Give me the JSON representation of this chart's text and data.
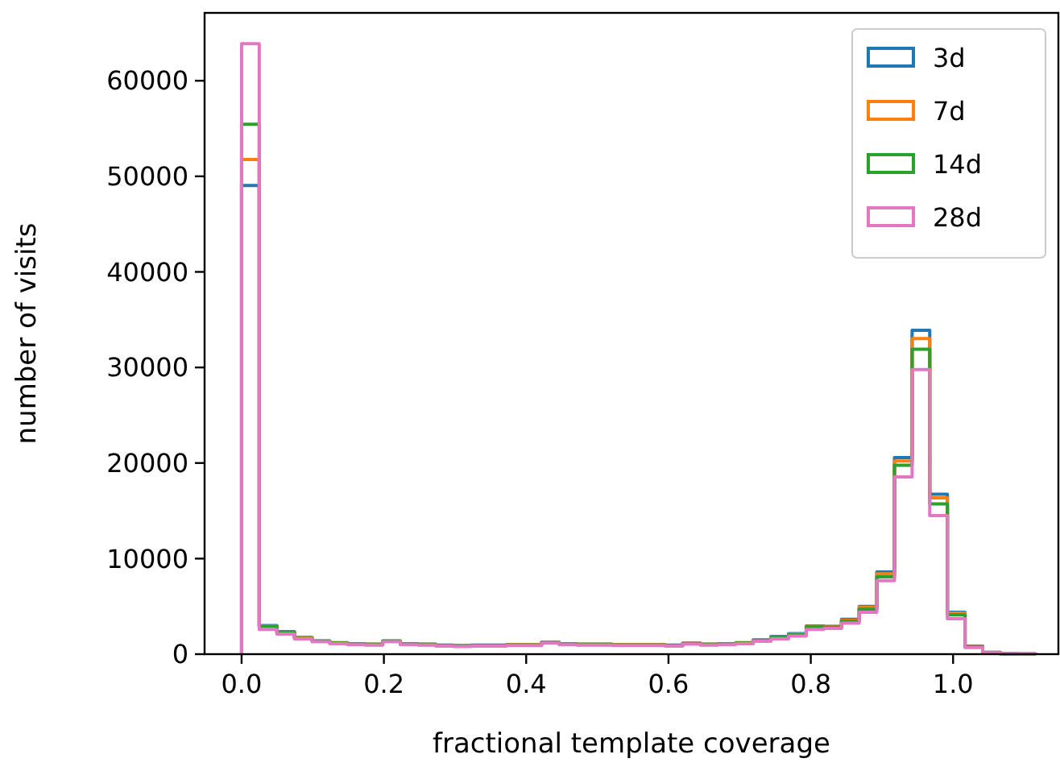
{
  "chart_data": {
    "type": "histogram",
    "xlabel": "fractional template coverage",
    "ylabel": "number of visits",
    "bins": [
      0,
      0.0248,
      0.0496,
      0.0744,
      0.0992,
      0.124,
      0.1488,
      0.1736,
      0.1984,
      0.2232,
      0.248,
      0.2728,
      0.2976,
      0.3224,
      0.3472,
      0.372,
      0.3968,
      0.4216,
      0.4464,
      0.4712,
      0.496,
      0.5208,
      0.5456,
      0.5704,
      0.5952,
      0.62,
      0.6448,
      0.6696,
      0.6944,
      0.7192,
      0.744,
      0.7688,
      0.7936,
      0.8184,
      0.8432,
      0.868,
      0.8928,
      0.9176,
      0.9424,
      0.9672,
      0.992,
      1.0168,
      1.0416,
      1.0664,
      1.0912,
      1.116
    ],
    "series": [
      {
        "name": "3d",
        "color": "#1f77b4",
        "values": [
          49050,
          3000,
          2350,
          1750,
          1400,
          1200,
          1100,
          1050,
          1400,
          1100,
          1050,
          950,
          900,
          950,
          950,
          1000,
          1000,
          1250,
          1100,
          1050,
          1050,
          1000,
          1000,
          1000,
          950,
          1150,
          1050,
          1100,
          1200,
          1500,
          1850,
          2140,
          2950,
          2900,
          3650,
          5000,
          8600,
          20560,
          33880,
          16740,
          4380,
          840,
          200,
          50,
          20
        ]
      },
      {
        "name": "7d",
        "color": "#ff7f0e",
        "values": [
          51750,
          2950,
          2300,
          1700,
          1380,
          1180,
          1080,
          1030,
          1380,
          1080,
          1030,
          930,
          880,
          930,
          930,
          980,
          980,
          1230,
          1080,
          1030,
          1030,
          980,
          980,
          980,
          930,
          1130,
          1030,
          1080,
          1180,
          1460,
          1800,
          2100,
          2900,
          2850,
          3550,
          4900,
          8400,
          20220,
          33030,
          16350,
          4300,
          800,
          190,
          50,
          20
        ]
      },
      {
        "name": "14d",
        "color": "#2ca02c",
        "values": [
          55450,
          2900,
          2250,
          1650,
          1350,
          1150,
          1050,
          1000,
          1350,
          1050,
          1000,
          900,
          850,
          900,
          900,
          950,
          950,
          1200,
          1050,
          1000,
          1000,
          950,
          950,
          950,
          900,
          1100,
          1000,
          1050,
          1150,
          1420,
          1750,
          2050,
          2850,
          2800,
          3450,
          4700,
          8100,
          19770,
          31900,
          15730,
          4100,
          760,
          170,
          50,
          20
        ]
      },
      {
        "name": "28d",
        "color": "#e377c2",
        "values": [
          63880,
          2600,
          2100,
          1600,
          1300,
          1100,
          1000,
          950,
          1300,
          1000,
          950,
          850,
          800,
          850,
          850,
          900,
          900,
          1150,
          1000,
          950,
          950,
          900,
          900,
          900,
          850,
          1050,
          950,
          1000,
          1100,
          1350,
          1600,
          1900,
          2600,
          2700,
          3250,
          4380,
          7700,
          18540,
          29780,
          14500,
          3700,
          700,
          150,
          50,
          20
        ]
      }
    ],
    "xlim": [
      -0.052,
      1.148
    ],
    "ylim": [
      0,
      67100
    ],
    "xticks": [
      {
        "value": 0,
        "label": "0.0"
      },
      {
        "value": 0.2,
        "label": "0.2"
      },
      {
        "value": 0.4,
        "label": "0.4"
      },
      {
        "value": 0.6,
        "label": "0.6"
      },
      {
        "value": 0.8,
        "label": "0.8"
      },
      {
        "value": 1,
        "label": "1.0"
      }
    ],
    "yticks": [
      0,
      10000,
      20000,
      30000,
      40000,
      50000,
      60000
    ],
    "grid": false,
    "legend": "top right"
  }
}
